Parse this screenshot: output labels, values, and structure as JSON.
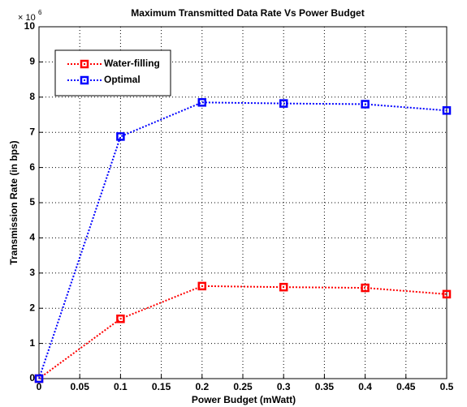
{
  "chart_data": {
    "type": "line",
    "title": "Maximum Transmitted Data Rate Vs Power Budget",
    "x_label": "Power Budget (mWatt)",
    "y_label": "Transmission Rate (in bps)",
    "y_multiplier_base": "× 10",
    "y_multiplier_exponent": "6",
    "x": [
      0,
      0.1,
      0.2,
      0.3,
      0.4,
      0.5
    ],
    "series": [
      {
        "name": "Water-filling",
        "color": "#ff0000",
        "values": [
          0,
          1.7,
          2.63,
          2.6,
          2.58,
          2.4
        ]
      },
      {
        "name": "Optimal",
        "color": "#0000ff",
        "values": [
          0,
          6.88,
          7.85,
          7.82,
          7.8,
          7.62
        ]
      }
    ],
    "xlim": [
      0,
      0.5
    ],
    "xticks": [
      0,
      0.05,
      0.1,
      0.15,
      0.2,
      0.25,
      0.3,
      0.35,
      0.4,
      0.45,
      0.5
    ],
    "ylim": [
      0,
      10
    ],
    "yticks": [
      0,
      1,
      2,
      3,
      4,
      5,
      6,
      7,
      8,
      9,
      10
    ],
    "grid": true,
    "legend": "upper-left"
  }
}
